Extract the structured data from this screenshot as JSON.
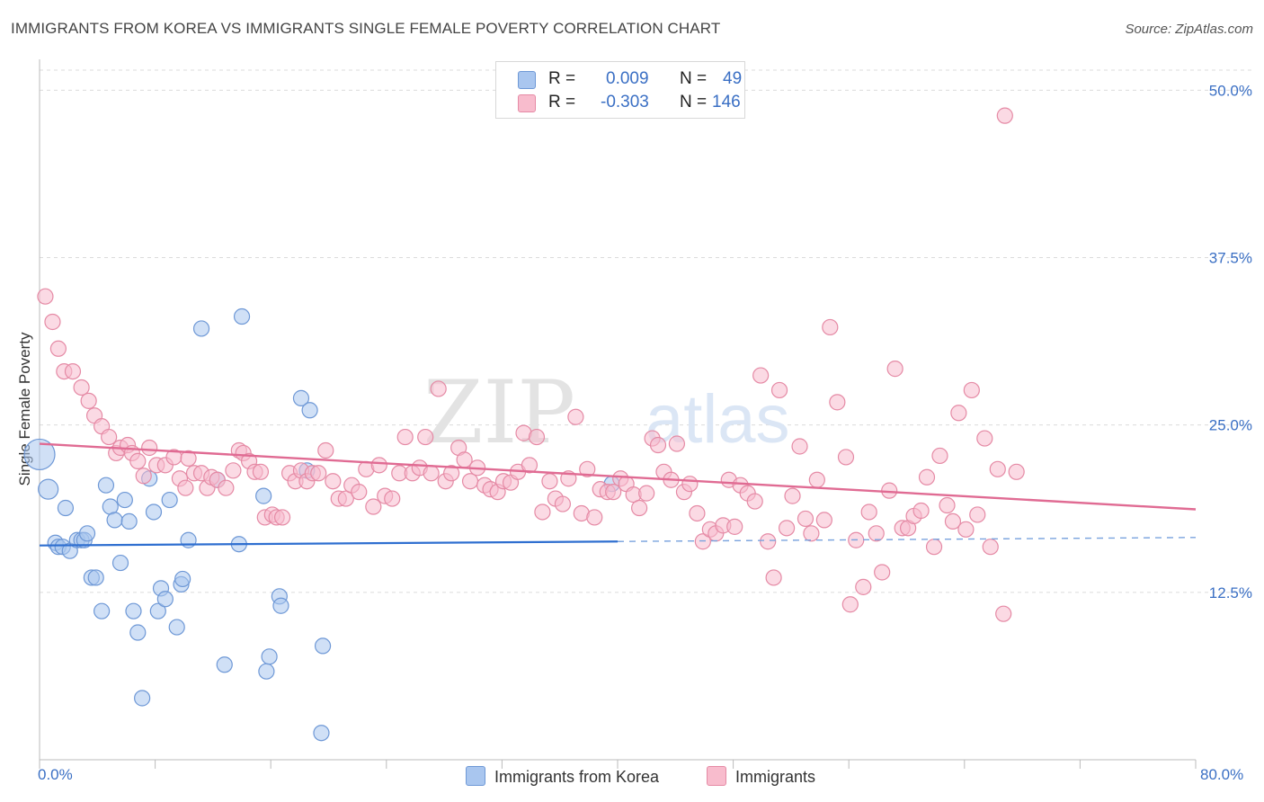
{
  "title": "IMMIGRANTS FROM KOREA VS IMMIGRANTS SINGLE FEMALE POVERTY CORRELATION CHART",
  "source": "Source: ZipAtlas.com",
  "watermark": {
    "zip": "ZIP",
    "atlas": "atlas"
  },
  "legend": {
    "rows": [
      {
        "r_label": "R =",
        "r_value": "0.009",
        "n_label": "N =",
        "n_value": "49",
        "color": "#a9c6ef",
        "stroke": "#6e98d6"
      },
      {
        "r_label": "R =",
        "r_value": "-0.303",
        "n_label": "N =",
        "n_value": "146",
        "color": "#f8bccd",
        "stroke": "#e58aa5"
      }
    ]
  },
  "bottom_legend": [
    {
      "label": "Immigrants from Korea",
      "color": "#a9c6ef",
      "stroke": "#6e98d6"
    },
    {
      "label": "Immigrants",
      "color": "#f8bccd",
      "stroke": "#e58aa5"
    }
  ],
  "chart_data": {
    "type": "scatter",
    "title": "IMMIGRANTS FROM KOREA VS IMMIGRANTS SINGLE FEMALE POVERTY CORRELATION CHART",
    "xlabel": "",
    "ylabel": "Single Female Poverty",
    "xlim": [
      0,
      80
    ],
    "ylim": [
      0,
      50
    ],
    "x_tick_labels": [
      "0.0%",
      "80.0%"
    ],
    "y_ticks": [
      12.5,
      25.0,
      37.5,
      50.0
    ],
    "y_tick_labels": [
      "12.5%",
      "25.0%",
      "37.5%",
      "50.0%"
    ],
    "grid": true,
    "series": [
      {
        "name": "Immigrants from Korea",
        "color": "#a9c6ef",
        "stroke": "#6e98d6",
        "line_color": "#2f6fd0",
        "trend": {
          "x0": 0,
          "y0": 16.0,
          "x1": 40,
          "y1": 16.3,
          "dash_to_x": 80,
          "dash_to_y": 16.6
        },
        "points": [
          [
            0.0,
            22.8
          ],
          [
            0.6,
            20.2
          ],
          [
            1.1,
            16.2
          ],
          [
            1.3,
            15.9
          ],
          [
            1.6,
            15.9
          ],
          [
            1.8,
            18.8
          ],
          [
            2.1,
            15.6
          ],
          [
            2.6,
            16.4
          ],
          [
            2.9,
            16.4
          ],
          [
            3.1,
            16.4
          ],
          [
            3.3,
            16.9
          ],
          [
            3.6,
            13.6
          ],
          [
            3.9,
            13.6
          ],
          [
            4.3,
            11.1
          ],
          [
            4.6,
            20.5
          ],
          [
            4.9,
            18.9
          ],
          [
            5.2,
            17.9
          ],
          [
            5.6,
            14.7
          ],
          [
            5.9,
            19.4
          ],
          [
            6.2,
            17.8
          ],
          [
            6.5,
            11.1
          ],
          [
            6.8,
            9.5
          ],
          [
            7.1,
            4.6
          ],
          [
            7.6,
            21.0
          ],
          [
            7.9,
            18.5
          ],
          [
            8.2,
            11.1
          ],
          [
            8.4,
            12.8
          ],
          [
            8.7,
            12.0
          ],
          [
            9.0,
            19.4
          ],
          [
            9.5,
            9.9
          ],
          [
            9.8,
            13.1
          ],
          [
            9.9,
            13.5
          ],
          [
            10.3,
            16.4
          ],
          [
            11.2,
            32.2
          ],
          [
            12.3,
            20.9
          ],
          [
            12.8,
            7.1
          ],
          [
            13.8,
            16.1
          ],
          [
            14.0,
            33.1
          ],
          [
            15.5,
            19.7
          ],
          [
            15.7,
            6.6
          ],
          [
            15.9,
            7.7
          ],
          [
            16.6,
            12.2
          ],
          [
            16.7,
            11.5
          ],
          [
            18.1,
            27.0
          ],
          [
            18.5,
            21.6
          ],
          [
            18.7,
            26.1
          ],
          [
            19.6,
            8.5
          ],
          [
            19.5,
            2.0
          ],
          [
            39.6,
            20.6
          ]
        ]
      },
      {
        "name": "Immigrants",
        "color": "#f8bccd",
        "stroke": "#e58aa5",
        "line_color": "#e06b93",
        "trend": {
          "x0": 0,
          "y0": 23.6,
          "x1": 80,
          "y1": 18.7
        },
        "points": [
          [
            0.4,
            34.6
          ],
          [
            0.9,
            32.7
          ],
          [
            1.3,
            30.7
          ],
          [
            1.7,
            29.0
          ],
          [
            2.3,
            29.0
          ],
          [
            2.9,
            27.8
          ],
          [
            3.4,
            26.8
          ],
          [
            3.8,
            25.7
          ],
          [
            4.3,
            24.9
          ],
          [
            4.8,
            24.1
          ],
          [
            5.3,
            22.9
          ],
          [
            5.6,
            23.3
          ],
          [
            6.1,
            23.5
          ],
          [
            6.4,
            22.9
          ],
          [
            6.8,
            22.3
          ],
          [
            7.2,
            21.2
          ],
          [
            7.6,
            23.3
          ],
          [
            8.1,
            22.0
          ],
          [
            8.7,
            22.0
          ],
          [
            9.3,
            22.6
          ],
          [
            9.7,
            21.0
          ],
          [
            10.1,
            20.3
          ],
          [
            10.3,
            22.5
          ],
          [
            10.7,
            21.4
          ],
          [
            11.2,
            21.4
          ],
          [
            11.6,
            20.3
          ],
          [
            11.9,
            21.1
          ],
          [
            12.3,
            20.9
          ],
          [
            12.9,
            20.3
          ],
          [
            13.4,
            21.6
          ],
          [
            13.8,
            23.1
          ],
          [
            14.1,
            22.9
          ],
          [
            14.5,
            22.3
          ],
          [
            14.9,
            21.5
          ],
          [
            15.3,
            21.5
          ],
          [
            15.6,
            18.1
          ],
          [
            16.1,
            18.3
          ],
          [
            16.4,
            18.1
          ],
          [
            16.8,
            18.1
          ],
          [
            17.3,
            21.4
          ],
          [
            17.7,
            20.8
          ],
          [
            18.1,
            21.6
          ],
          [
            18.5,
            20.8
          ],
          [
            18.9,
            21.4
          ],
          [
            19.3,
            21.4
          ],
          [
            19.8,
            23.1
          ],
          [
            20.3,
            20.8
          ],
          [
            20.7,
            19.5
          ],
          [
            21.2,
            19.5
          ],
          [
            21.6,
            20.5
          ],
          [
            22.1,
            20.0
          ],
          [
            22.6,
            21.7
          ],
          [
            23.1,
            18.9
          ],
          [
            23.5,
            22.0
          ],
          [
            23.9,
            19.7
          ],
          [
            24.4,
            19.5
          ],
          [
            24.9,
            21.4
          ],
          [
            25.3,
            24.1
          ],
          [
            25.8,
            21.4
          ],
          [
            26.3,
            21.8
          ],
          [
            26.7,
            24.1
          ],
          [
            27.1,
            21.4
          ],
          [
            27.6,
            27.7
          ],
          [
            28.1,
            20.8
          ],
          [
            28.5,
            21.4
          ],
          [
            29.0,
            23.3
          ],
          [
            29.4,
            22.4
          ],
          [
            29.8,
            20.8
          ],
          [
            30.3,
            21.8
          ],
          [
            30.8,
            20.5
          ],
          [
            31.2,
            20.2
          ],
          [
            31.7,
            20.0
          ],
          [
            32.1,
            20.8
          ],
          [
            32.6,
            20.7
          ],
          [
            33.1,
            21.5
          ],
          [
            33.5,
            24.4
          ],
          [
            33.9,
            22.0
          ],
          [
            34.4,
            24.1
          ],
          [
            34.8,
            18.5
          ],
          [
            35.3,
            20.8
          ],
          [
            35.7,
            19.5
          ],
          [
            36.2,
            19.1
          ],
          [
            36.6,
            21.0
          ],
          [
            37.1,
            25.6
          ],
          [
            37.5,
            18.4
          ],
          [
            37.9,
            21.7
          ],
          [
            38.4,
            18.1
          ],
          [
            38.8,
            20.2
          ],
          [
            39.3,
            20.0
          ],
          [
            39.7,
            20.0
          ],
          [
            40.2,
            21.0
          ],
          [
            40.6,
            20.6
          ],
          [
            41.1,
            19.8
          ],
          [
            41.5,
            18.8
          ],
          [
            42.0,
            19.9
          ],
          [
            42.4,
            24.0
          ],
          [
            42.8,
            23.5
          ],
          [
            43.2,
            21.5
          ],
          [
            43.7,
            20.9
          ],
          [
            44.1,
            23.6
          ],
          [
            44.6,
            20.0
          ],
          [
            45.0,
            20.6
          ],
          [
            45.5,
            18.4
          ],
          [
            45.9,
            16.3
          ],
          [
            46.4,
            17.2
          ],
          [
            46.8,
            16.9
          ],
          [
            47.3,
            17.5
          ],
          [
            47.7,
            20.9
          ],
          [
            48.1,
            17.4
          ],
          [
            48.5,
            20.5
          ],
          [
            49.0,
            19.9
          ],
          [
            49.5,
            19.3
          ],
          [
            49.9,
            28.7
          ],
          [
            50.4,
            16.3
          ],
          [
            50.8,
            13.6
          ],
          [
            51.2,
            27.6
          ],
          [
            51.7,
            17.3
          ],
          [
            52.1,
            19.7
          ],
          [
            52.6,
            23.4
          ],
          [
            53.0,
            18.0
          ],
          [
            53.4,
            16.9
          ],
          [
            53.8,
            20.9
          ],
          [
            54.3,
            17.9
          ],
          [
            54.7,
            32.3
          ],
          [
            55.2,
            26.7
          ],
          [
            55.8,
            22.6
          ],
          [
            56.1,
            11.6
          ],
          [
            56.5,
            16.4
          ],
          [
            57.0,
            12.9
          ],
          [
            57.4,
            18.5
          ],
          [
            57.9,
            16.9
          ],
          [
            58.3,
            14.0
          ],
          [
            58.8,
            20.1
          ],
          [
            59.2,
            29.2
          ],
          [
            59.7,
            17.3
          ],
          [
            60.1,
            17.3
          ],
          [
            60.5,
            18.2
          ],
          [
            61.0,
            18.6
          ],
          [
            61.4,
            21.1
          ],
          [
            61.9,
            15.9
          ],
          [
            62.3,
            22.7
          ],
          [
            62.8,
            19.0
          ],
          [
            63.2,
            17.8
          ],
          [
            63.6,
            25.9
          ],
          [
            64.1,
            17.2
          ],
          [
            64.5,
            27.6
          ],
          [
            64.9,
            18.3
          ],
          [
            65.4,
            24.0
          ],
          [
            65.8,
            15.9
          ],
          [
            66.3,
            21.7
          ],
          [
            66.7,
            10.9
          ],
          [
            67.6,
            21.5
          ],
          [
            66.8,
            48.1
          ]
        ]
      }
    ]
  }
}
